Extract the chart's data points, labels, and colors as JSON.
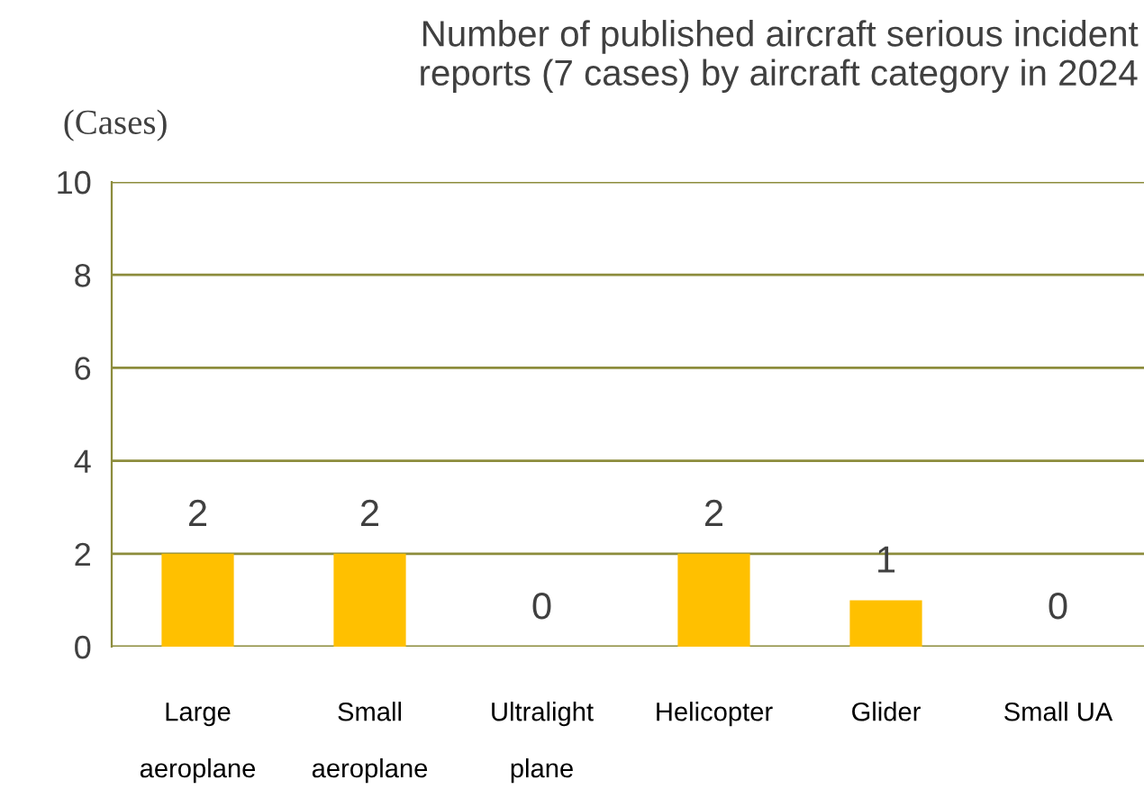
{
  "chart_data": {
    "type": "bar",
    "title": "Number of published aircraft serious incident\nreports (7 cases) by aircraft category in 2024",
    "ylabel": "(Cases)",
    "categories": [
      "Large\n\naeroplane",
      "Small\n\naeroplane",
      "Ultralight\n\nplane",
      "Helicopter",
      "Glider",
      "Small UA"
    ],
    "values": [
      2,
      2,
      0,
      2,
      1,
      0
    ],
    "color": "#ffc000",
    "ylim": [
      0,
      10
    ],
    "yticks": [
      0,
      2,
      4,
      6,
      8,
      10
    ],
    "grid": "y",
    "data_labels": true
  }
}
